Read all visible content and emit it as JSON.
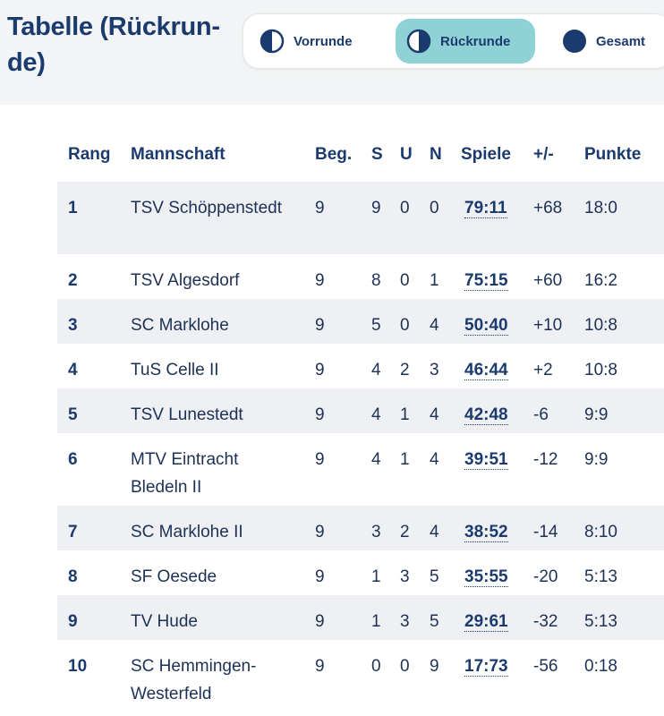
{
  "header": {
    "title": "Tabelle (Rückrun-de)"
  },
  "segments": [
    {
      "label": "Vorrunde",
      "icon": "half-circle-left-icon",
      "active": false
    },
    {
      "label": "Rückrunde",
      "icon": "half-circle-right-icon",
      "active": true
    },
    {
      "label": "Gesamt",
      "icon": "full-circle-icon",
      "active": false
    }
  ],
  "colors": {
    "accent": "#8fd2d6",
    "navy": "#1b3a6d",
    "stripe": "#eef0f3"
  },
  "table": {
    "columns": [
      "Rang",
      "Mannschaft",
      "Beg.",
      "S",
      "U",
      "N",
      "Spiele",
      "+/-",
      "Punkte"
    ],
    "rows": [
      {
        "rang": "1",
        "team": "TSV Schöppenstedt",
        "beg": "9",
        "s": "9",
        "u": "0",
        "n": "0",
        "spiele": "79:11",
        "diff": "+68",
        "punkte": "18:0"
      },
      {
        "rang": "2",
        "team": "TSV Algesdorf",
        "beg": "9",
        "s": "8",
        "u": "0",
        "n": "1",
        "spiele": "75:15",
        "diff": "+60",
        "punkte": "16:2"
      },
      {
        "rang": "3",
        "team": "SC Marklohe",
        "beg": "9",
        "s": "5",
        "u": "0",
        "n": "4",
        "spiele": "50:40",
        "diff": "+10",
        "punkte": "10:8"
      },
      {
        "rang": "4",
        "team": "TuS Celle II",
        "beg": "9",
        "s": "4",
        "u": "2",
        "n": "3",
        "spiele": "46:44",
        "diff": "+2",
        "punkte": "10:8"
      },
      {
        "rang": "5",
        "team": "TSV Lunestedt",
        "beg": "9",
        "s": "4",
        "u": "1",
        "n": "4",
        "spiele": "42:48",
        "diff": "-6",
        "punkte": "9:9"
      },
      {
        "rang": "6",
        "team": "MTV Eintracht Bledeln II",
        "beg": "9",
        "s": "4",
        "u": "1",
        "n": "4",
        "spiele": "39:51",
        "diff": "-12",
        "punkte": "9:9"
      },
      {
        "rang": "7",
        "team": "SC Marklohe II",
        "beg": "9",
        "s": "3",
        "u": "2",
        "n": "4",
        "spiele": "38:52",
        "diff": "-14",
        "punkte": "8:10"
      },
      {
        "rang": "8",
        "team": "SF Oesede",
        "beg": "9",
        "s": "1",
        "u": "3",
        "n": "5",
        "spiele": "35:55",
        "diff": "-20",
        "punkte": "5:13"
      },
      {
        "rang": "9",
        "team": "TV Hude",
        "beg": "9",
        "s": "1",
        "u": "3",
        "n": "5",
        "spiele": "29:61",
        "diff": "-32",
        "punkte": "5:13"
      },
      {
        "rang": "10",
        "team": "SC Hemmingen-Westerfeld",
        "beg": "9",
        "s": "0",
        "u": "0",
        "n": "9",
        "spiele": "17:73",
        "diff": "-56",
        "punkte": "0:18"
      }
    ]
  }
}
